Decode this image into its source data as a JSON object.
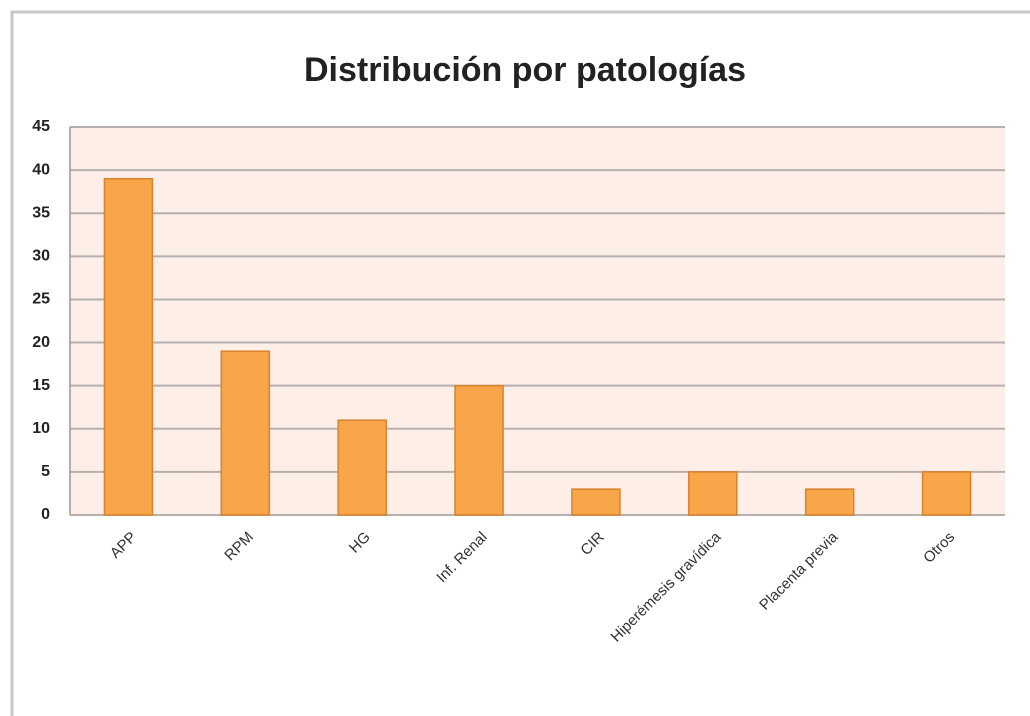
{
  "chart_data": {
    "type": "bar",
    "title": "Distribución por patologías",
    "categories": [
      "APP",
      "RPM",
      "HG",
      "Inf. Renal",
      "CIR",
      "Hiperémesis gravídica",
      "Placenta previa",
      "Otros"
    ],
    "values": [
      39,
      19,
      11,
      15,
      3,
      5,
      3,
      5
    ],
    "color": "#f9a54a",
    "ylim": [
      0,
      45
    ],
    "yticks": [
      0,
      5,
      10,
      15,
      20,
      25,
      30,
      35,
      40,
      45
    ],
    "grid": true
  }
}
